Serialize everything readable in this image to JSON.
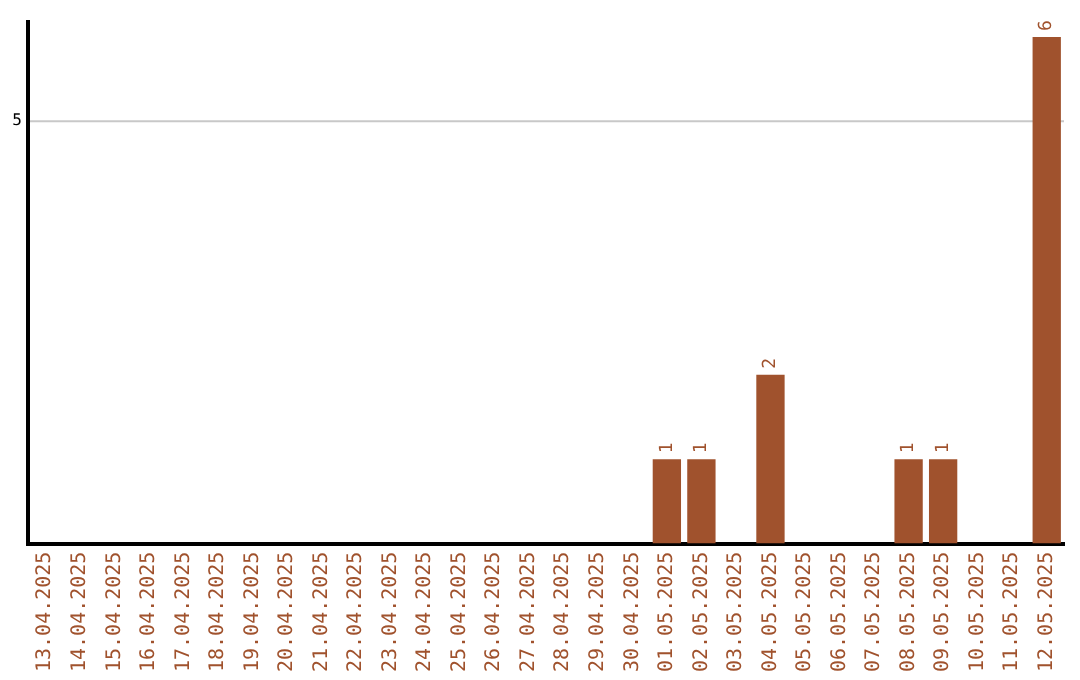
{
  "chart_data": {
    "type": "bar",
    "ylim": [
      0,
      6.2
    ],
    "categories": [
      "13.04.2025",
      "14.04.2025",
      "15.04.2025",
      "16.04.2025",
      "17.04.2025",
      "18.04.2025",
      "19.04.2025",
      "20.04.2025",
      "21.04.2025",
      "22.04.2025",
      "23.04.2025",
      "24.04.2025",
      "25.04.2025",
      "26.04.2025",
      "27.04.2025",
      "28.04.2025",
      "29.04.2025",
      "30.04.2025",
      "01.05.2025",
      "02.05.2025",
      "03.05.2025",
      "04.05.2025",
      "05.05.2025",
      "06.05.2025",
      "07.05.2025",
      "08.05.2025",
      "09.05.2025",
      "10.05.2025",
      "11.05.2025",
      "12.05.2025"
    ],
    "values": [
      null,
      null,
      null,
      null,
      null,
      null,
      null,
      null,
      null,
      null,
      null,
      null,
      null,
      null,
      null,
      null,
      null,
      null,
      1,
      1,
      null,
      2,
      null,
      null,
      null,
      1,
      1,
      null,
      null,
      6
    ],
    "value_labels": [
      null,
      null,
      null,
      null,
      null,
      null,
      null,
      null,
      null,
      null,
      null,
      null,
      null,
      null,
      null,
      null,
      null,
      null,
      "1",
      "1",
      null,
      "2",
      null,
      null,
      null,
      "1",
      "1",
      null,
      null,
      "6"
    ],
    "color": "#a0522d",
    "ref_lines": [
      {
        "axis": "y",
        "value": 5,
        "label": "5",
        "color": "#c8c8c8"
      }
    ],
    "legend": false
  }
}
